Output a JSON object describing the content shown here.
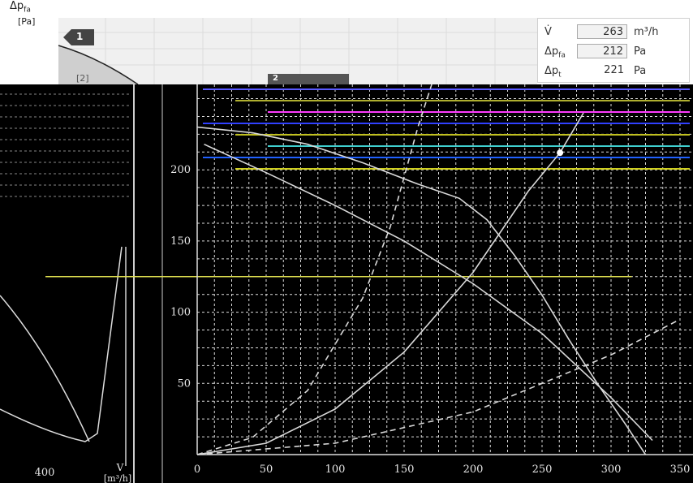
{
  "top_panel": {
    "ylabel_symbol": "Δp",
    "ylabel_sub": "fa",
    "ylabel_unit": "[Pa]",
    "marker_1": "1",
    "marker_2": "[2]",
    "marker_3": "2"
  },
  "readout": {
    "rows": [
      {
        "symbol": "V̇",
        "sub": "",
        "value": "263",
        "unit": "m³/h",
        "boxed": true
      },
      {
        "symbol": "Δp",
        "sub": "fa",
        "value": "212",
        "unit": "Pa",
        "boxed": true
      },
      {
        "symbol": "Δp",
        "sub": "t",
        "value": "221",
        "unit": "Pa",
        "boxed": false
      }
    ]
  },
  "left_panel": {
    "x_tick": "400",
    "x_label_symbol": "V",
    "x_label_unit": "[m³/h]"
  },
  "chart_data": {
    "type": "line",
    "background": "#000000",
    "grid": true,
    "xlim": [
      0,
      350
    ],
    "ylim": [
      0,
      260
    ],
    "x_ticks": [
      "0",
      "50",
      "100",
      "150",
      "200",
      "250",
      "300",
      "350"
    ],
    "y_ticks": [
      "50",
      "100",
      "150",
      "200"
    ],
    "operating_point": {
      "x": 263,
      "y": 212
    },
    "series": [
      {
        "style": "solid",
        "color": "#d9d9d9",
        "points": [
          [
            0,
            230
          ],
          [
            40,
            226
          ],
          [
            80,
            218
          ],
          [
            120,
            205
          ],
          [
            160,
            190
          ],
          [
            190,
            180
          ],
          [
            210,
            165
          ],
          [
            230,
            140
          ],
          [
            250,
            112
          ],
          [
            270,
            80
          ],
          [
            290,
            50
          ],
          [
            310,
            22
          ],
          [
            325,
            0
          ]
        ]
      },
      {
        "style": "solid",
        "color": "#d9d9d9",
        "points": [
          [
            5,
            218
          ],
          [
            50,
            198
          ],
          [
            100,
            175
          ],
          [
            150,
            150
          ],
          [
            200,
            120
          ],
          [
            250,
            85
          ],
          [
            300,
            40
          ],
          [
            330,
            10
          ]
        ]
      },
      {
        "style": "solid",
        "color": "#d9d9d9",
        "points": [
          [
            0,
            0
          ],
          [
            50,
            8
          ],
          [
            100,
            32
          ],
          [
            150,
            72
          ],
          [
            200,
            128
          ],
          [
            240,
            185
          ],
          [
            263,
            212
          ],
          [
            280,
            240
          ]
        ]
      },
      {
        "style": "dashed",
        "color": "#d9d9d9",
        "points": [
          [
            0,
            0
          ],
          [
            40,
            12
          ],
          [
            80,
            45
          ],
          [
            120,
            110
          ],
          [
            140,
            160
          ],
          [
            160,
            230
          ],
          [
            170,
            260
          ]
        ]
      },
      {
        "style": "dashed",
        "color": "#d9d9d9",
        "points": [
          [
            0,
            0
          ],
          [
            100,
            8
          ],
          [
            200,
            30
          ],
          [
            300,
            70
          ],
          [
            350,
            95
          ]
        ]
      }
    ],
    "reference_line": {
      "y": 125,
      "from": -110,
      "to": 315,
      "color": "#e0e050"
    },
    "top_colored_lines": [
      "#5a5aff",
      "#b0b030",
      "#ff3cff",
      "#3040ff",
      "#c0c020",
      "#40d0d0",
      "#2060ff",
      "#d0d020"
    ]
  }
}
